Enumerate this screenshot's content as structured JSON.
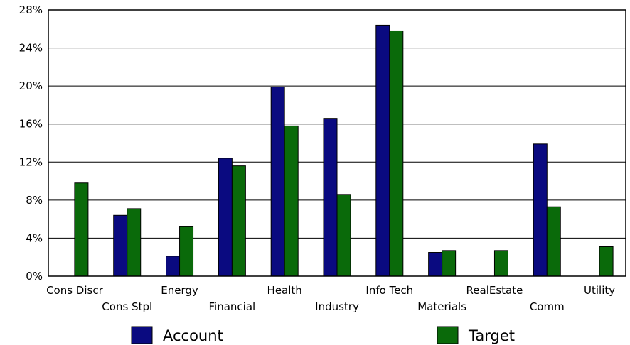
{
  "chart_data": {
    "type": "bar",
    "title": "",
    "xlabel": "",
    "ylabel": "",
    "ylim": [
      0,
      28
    ],
    "yticks": [
      "0%",
      "4%",
      "8%",
      "12%",
      "16%",
      "20%",
      "24%",
      "28%"
    ],
    "grid": true,
    "legend_position": "bottom",
    "categories": [
      "Cons Discr",
      "Cons Stpl",
      "Energy",
      "Financial",
      "Health",
      "Industry",
      "Info Tech",
      "Materials",
      "RealEstate",
      "Comm",
      "Utility"
    ],
    "series": [
      {
        "name": "Account",
        "color": "#0a0a80",
        "values": [
          0,
          6.4,
          2.1,
          12.4,
          19.9,
          16.6,
          26.4,
          2.5,
          0,
          13.9,
          0
        ]
      },
      {
        "name": "Target",
        "color": "#0a6a0a",
        "values": [
          9.8,
          7.1,
          5.2,
          11.6,
          15.8,
          8.6,
          25.8,
          2.7,
          2.7,
          7.3,
          3.1
        ]
      }
    ]
  }
}
